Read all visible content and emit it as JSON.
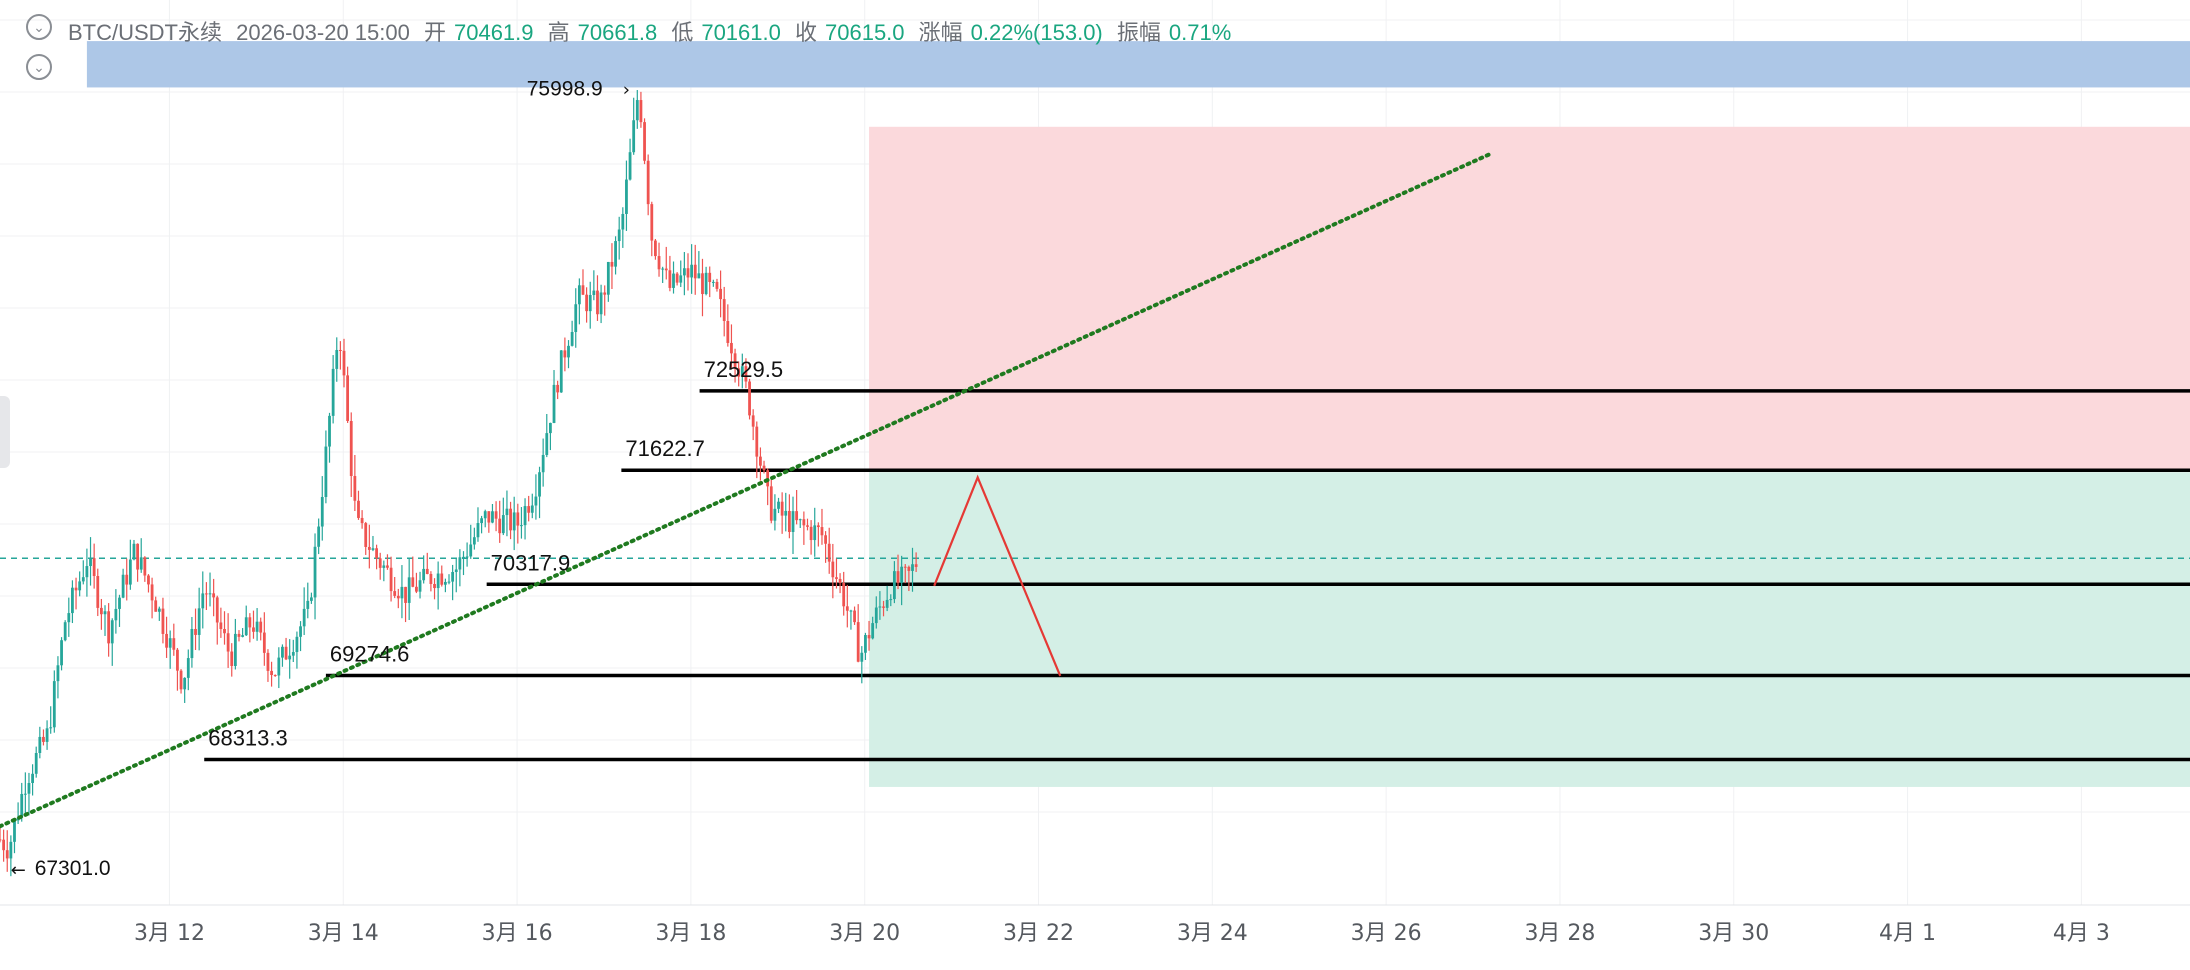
{
  "header": {
    "symbol": "BTC/USDT永续",
    "datetime": "2026-03-20 15:00",
    "open_label": "开",
    "open": "70461.9",
    "high_label": "高",
    "high": "70661.8",
    "low_label": "低",
    "low": "70161.0",
    "close_label": "收",
    "close": "70615.0",
    "change_label": "涨幅",
    "change": "0.22%(153.0)",
    "amplitude_label": "振幅",
    "amplitude": "0.71%"
  },
  "icons": {
    "header_toggle": "chevron-down-icon",
    "indicator_toggle": "chevron-down-icon"
  },
  "colors": {
    "up": "#26a69a",
    "down": "#ef5350",
    "trendline": "#1f7a1f",
    "resistance_zone": "#a9c4e6",
    "short_zone": "#fbd9dc",
    "target_zone": "#d4efe6",
    "projection": "#e53935",
    "level_line": "#000000",
    "last_price_line": "#26a69a"
  },
  "chart_data": {
    "type": "candlestick",
    "symbol": "BTC/USDT永续",
    "interval_hint": "1h",
    "x_axis": {
      "ticks": [
        "3月 12",
        "3月 14",
        "3月 16",
        "3月 18",
        "3月 20",
        "3月 22",
        "3月 24",
        "3月 26",
        "3月 28",
        "3月 30",
        "4月 1",
        "4月 3"
      ],
      "tick_days": [
        12,
        14,
        16,
        18,
        20,
        22,
        24,
        26,
        28,
        30,
        32,
        34
      ],
      "range_days": [
        10.05,
        35.25
      ]
    },
    "y_axis": {
      "range": [
        66650,
        77000
      ],
      "labels_shown": false
    },
    "price_series": [
      {
        "day": 10.05,
        "price": 67400
      },
      {
        "day": 10.15,
        "price": 67301
      },
      {
        "day": 10.35,
        "price": 68100
      },
      {
        "day": 10.6,
        "price": 68600
      },
      {
        "day": 10.8,
        "price": 69900
      },
      {
        "day": 11.05,
        "price": 70600
      },
      {
        "day": 11.3,
        "price": 69800
      },
      {
        "day": 11.6,
        "price": 70700
      },
      {
        "day": 11.85,
        "price": 70100
      },
      {
        "day": 12.15,
        "price": 69200
      },
      {
        "day": 12.4,
        "price": 70300
      },
      {
        "day": 12.7,
        "price": 69500
      },
      {
        "day": 12.95,
        "price": 69900
      },
      {
        "day": 13.2,
        "price": 69300
      },
      {
        "day": 13.6,
        "price": 70000
      },
      {
        "day": 13.8,
        "price": 71800
      },
      {
        "day": 13.95,
        "price": 73300
      },
      {
        "day": 14.15,
        "price": 71000
      },
      {
        "day": 14.4,
        "price": 70600
      },
      {
        "day": 14.7,
        "price": 70200
      },
      {
        "day": 15.0,
        "price": 70400
      },
      {
        "day": 15.3,
        "price": 70500
      },
      {
        "day": 15.65,
        "price": 71100
      },
      {
        "day": 16.0,
        "price": 71000
      },
      {
        "day": 16.2,
        "price": 71400
      },
      {
        "day": 16.45,
        "price": 72600
      },
      {
        "day": 16.7,
        "price": 73600
      },
      {
        "day": 16.95,
        "price": 73500
      },
      {
        "day": 17.2,
        "price": 74400
      },
      {
        "day": 17.4,
        "price": 75999
      },
      {
        "day": 17.55,
        "price": 74300
      },
      {
        "day": 17.75,
        "price": 73700
      },
      {
        "day": 18.0,
        "price": 73900
      },
      {
        "day": 18.3,
        "price": 73600
      },
      {
        "day": 18.65,
        "price": 72500
      },
      {
        "day": 18.9,
        "price": 71200
      },
      {
        "day": 19.2,
        "price": 71000
      },
      {
        "day": 19.5,
        "price": 70900
      },
      {
        "day": 19.75,
        "price": 70200
      },
      {
        "day": 19.95,
        "price": 69500
      },
      {
        "day": 20.1,
        "price": 69900
      },
      {
        "day": 20.3,
        "price": 70300
      },
      {
        "day": 20.5,
        "price": 70400
      },
      {
        "day": 20.62,
        "price": 70615
      }
    ],
    "highlighted_prices": [
      {
        "label": "75998.9",
        "value": 75998.9,
        "day": 17.4,
        "kind": "high"
      },
      {
        "label": "67301.0",
        "value": 67301.0,
        "day": 10.15,
        "kind": "low"
      }
    ],
    "horizontal_levels": [
      {
        "label": "72529.5",
        "value": 72529.5,
        "from_day": 18.1
      },
      {
        "label": "71622.7",
        "value": 71622.7,
        "from_day": 17.2
      },
      {
        "label": "70317.9",
        "value": 70317.9,
        "from_day": 15.65
      },
      {
        "label": "69274.6",
        "value": 69274.6,
        "from_day": 13.8
      },
      {
        "label": "68313.3",
        "value": 68313.3,
        "from_day": 12.4
      }
    ],
    "last_price": 70615.0,
    "trendline": {
      "from": {
        "day": 10.05,
        "price": 67550
      },
      "to": {
        "day": 27.2,
        "price": 75240
      },
      "style": "dotted"
    },
    "zones": [
      {
        "name": "resistance",
        "day_from": 11.05,
        "day_to": 35.25,
        "price_top": 76530,
        "price_bottom": 76000
      },
      {
        "name": "short",
        "day_from": 20.05,
        "day_to": 35.25,
        "price_top": 75550,
        "price_bottom": 71600
      },
      {
        "name": "target",
        "day_from": 20.05,
        "day_to": 35.25,
        "price_top": 71600,
        "price_bottom": 68000
      }
    ],
    "projection": [
      {
        "day": 20.8,
        "price": 70300
      },
      {
        "day": 21.3,
        "price": 71540
      },
      {
        "day": 22.25,
        "price": 69270
      }
    ],
    "grid": true,
    "legend": "none"
  }
}
